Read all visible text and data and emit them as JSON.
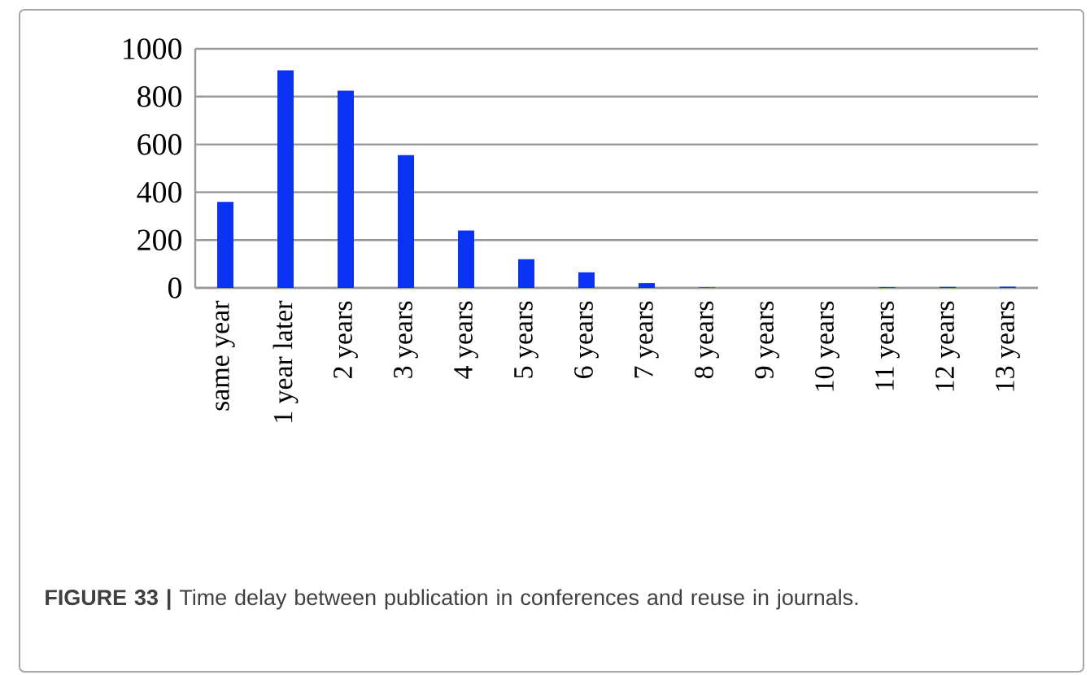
{
  "chart_data": {
    "type": "bar",
    "categories": [
      "same year",
      "1 year later",
      "2 years",
      "3 years",
      "4 years",
      "5 years",
      "6 years",
      "7 years",
      "8 years",
      "9 years",
      "10 years",
      "11 years",
      "12 years",
      "13 years"
    ],
    "values": [
      360,
      910,
      825,
      555,
      240,
      120,
      65,
      20,
      2,
      null,
      null,
      3,
      4,
      5
    ],
    "color": "#0a32f5",
    "ylim": [
      0,
      1000
    ],
    "yticks": [
      0,
      200,
      400,
      600,
      800,
      1000
    ],
    "grid": "y",
    "annotations": [
      "**FIGURE 33 |** Time delay between publication in conferences and reuse in journals."
    ]
  }
}
